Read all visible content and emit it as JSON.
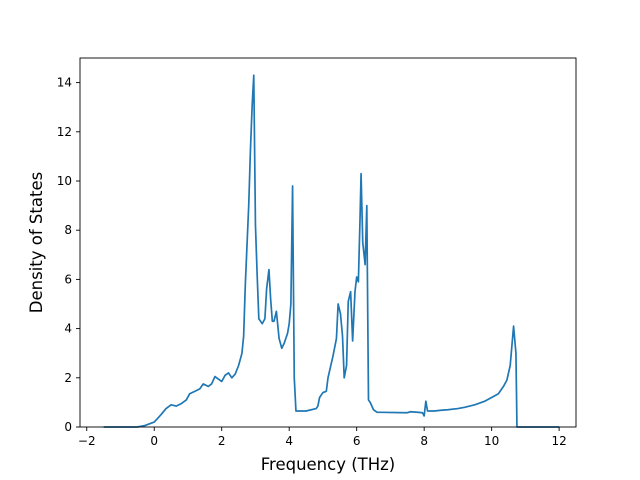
{
  "chart_data": {
    "type": "line",
    "title": "",
    "xlabel": "Frequency (THz)",
    "ylabel": "Density of States",
    "xlim": [
      -2.2,
      12.5
    ],
    "ylim": [
      0,
      15
    ],
    "x_ticks": [
      -2,
      0,
      2,
      4,
      6,
      8,
      10,
      12
    ],
    "y_ticks": [
      0,
      2,
      4,
      6,
      8,
      10,
      12,
      14
    ],
    "x_tick_labels": [
      "−2",
      "0",
      "2",
      "4",
      "6",
      "8",
      "10",
      "12"
    ],
    "y_tick_labels": [
      "0",
      "2",
      "4",
      "6",
      "8",
      "10",
      "12",
      "14"
    ],
    "grid": false,
    "line_color": "#1f77b4",
    "series": [
      {
        "points": [
          [
            -1.5,
            0
          ],
          [
            -0.5,
            0
          ],
          [
            -0.3,
            0.05
          ],
          [
            0,
            0.2
          ],
          [
            0.1,
            0.35
          ],
          [
            0.2,
            0.5
          ],
          [
            0.35,
            0.75
          ],
          [
            0.5,
            0.9
          ],
          [
            0.65,
            0.85
          ],
          [
            0.8,
            0.95
          ],
          [
            0.95,
            1.1
          ],
          [
            1.05,
            1.35
          ],
          [
            1.2,
            1.45
          ],
          [
            1.35,
            1.55
          ],
          [
            1.45,
            1.75
          ],
          [
            1.6,
            1.65
          ],
          [
            1.7,
            1.75
          ],
          [
            1.8,
            2.05
          ],
          [
            1.9,
            1.95
          ],
          [
            2.0,
            1.85
          ],
          [
            2.1,
            2.1
          ],
          [
            2.2,
            2.2
          ],
          [
            2.3,
            2.0
          ],
          [
            2.4,
            2.15
          ],
          [
            2.5,
            2.5
          ],
          [
            2.6,
            3.0
          ],
          [
            2.65,
            3.7
          ],
          [
            2.7,
            5.8
          ],
          [
            2.8,
            9.0
          ],
          [
            2.85,
            11.2
          ],
          [
            2.9,
            13.0
          ],
          [
            2.95,
            14.3
          ],
          [
            3.0,
            8.2
          ],
          [
            3.05,
            6.2
          ],
          [
            3.1,
            4.4
          ],
          [
            3.2,
            4.2
          ],
          [
            3.28,
            4.4
          ],
          [
            3.33,
            5.6
          ],
          [
            3.4,
            6.4
          ],
          [
            3.45,
            5.2
          ],
          [
            3.5,
            4.3
          ],
          [
            3.55,
            4.3
          ],
          [
            3.62,
            4.7
          ],
          [
            3.7,
            3.6
          ],
          [
            3.78,
            3.2
          ],
          [
            3.85,
            3.4
          ],
          [
            3.95,
            3.8
          ],
          [
            4.0,
            4.2
          ],
          [
            4.05,
            5.0
          ],
          [
            4.1,
            9.8
          ],
          [
            4.15,
            2.0
          ],
          [
            4.2,
            0.65
          ],
          [
            4.5,
            0.65
          ],
          [
            4.8,
            0.75
          ],
          [
            4.85,
            0.85
          ],
          [
            4.9,
            1.2
          ],
          [
            5.0,
            1.4
          ],
          [
            5.1,
            1.45
          ],
          [
            5.15,
            2.0
          ],
          [
            5.3,
            2.9
          ],
          [
            5.4,
            3.6
          ],
          [
            5.45,
            5.0
          ],
          [
            5.52,
            4.6
          ],
          [
            5.58,
            3.7
          ],
          [
            5.63,
            2.0
          ],
          [
            5.7,
            2.5
          ],
          [
            5.75,
            5.1
          ],
          [
            5.82,
            5.5
          ],
          [
            5.88,
            3.5
          ],
          [
            5.95,
            5.5
          ],
          [
            6.0,
            6.1
          ],
          [
            6.05,
            5.9
          ],
          [
            6.1,
            8.5
          ],
          [
            6.13,
            10.3
          ],
          [
            6.18,
            7.5
          ],
          [
            6.25,
            6.6
          ],
          [
            6.3,
            9.0
          ],
          [
            6.35,
            1.1
          ],
          [
            6.4,
            1.0
          ],
          [
            6.5,
            0.7
          ],
          [
            6.6,
            0.6
          ],
          [
            7.5,
            0.58
          ],
          [
            7.6,
            0.62
          ],
          [
            7.8,
            0.6
          ],
          [
            7.95,
            0.58
          ],
          [
            8.0,
            0.45
          ],
          [
            8.05,
            1.05
          ],
          [
            8.1,
            0.65
          ],
          [
            8.3,
            0.65
          ],
          [
            8.5,
            0.68
          ],
          [
            8.7,
            0.7
          ],
          [
            9.0,
            0.75
          ],
          [
            9.2,
            0.8
          ],
          [
            9.5,
            0.9
          ],
          [
            9.8,
            1.05
          ],
          [
            10.0,
            1.2
          ],
          [
            10.2,
            1.35
          ],
          [
            10.35,
            1.65
          ],
          [
            10.45,
            1.9
          ],
          [
            10.55,
            2.5
          ],
          [
            10.65,
            4.1
          ],
          [
            10.72,
            3.0
          ],
          [
            10.75,
            0
          ],
          [
            12.0,
            0
          ]
        ]
      }
    ]
  }
}
